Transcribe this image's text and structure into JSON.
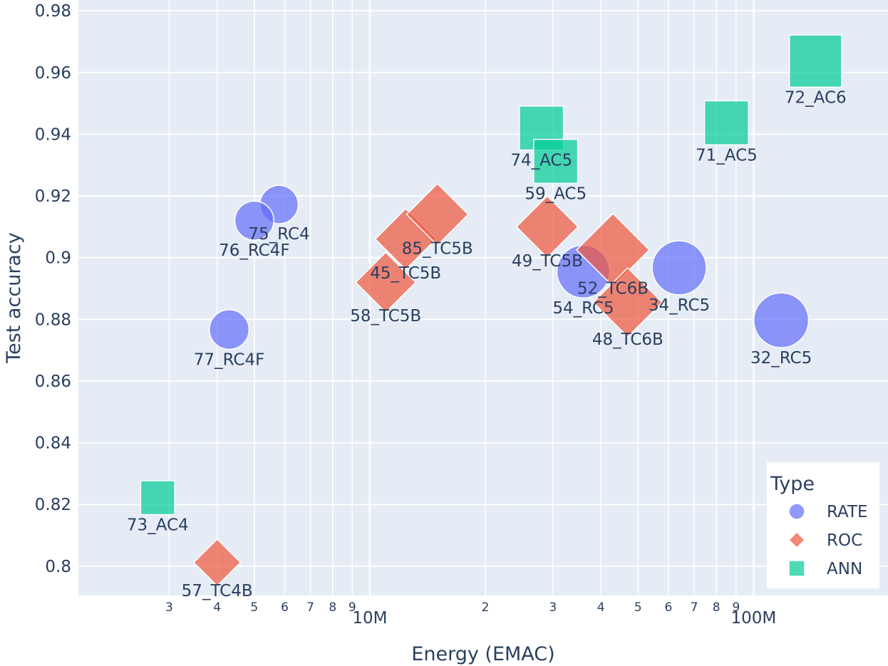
{
  "chart_data": {
    "type": "scatter",
    "title": "",
    "xlabel": "Energy (EMAC)",
    "ylabel": "Test accuracy",
    "xscale": "log",
    "xlim": [
      1740000.0,
      224000000.0
    ],
    "ylim": [
      0.7905,
      0.9835
    ],
    "yticks": [
      {
        "value": 0.8,
        "label": "0.8"
      },
      {
        "value": 0.82,
        "label": "0.82"
      },
      {
        "value": 0.84,
        "label": "0.84"
      },
      {
        "value": 0.86,
        "label": "0.86"
      },
      {
        "value": 0.88,
        "label": "0.88"
      },
      {
        "value": 0.9,
        "label": "0.9"
      },
      {
        "value": 0.92,
        "label": "0.92"
      },
      {
        "value": 0.94,
        "label": "0.94"
      },
      {
        "value": 0.96,
        "label": "0.96"
      },
      {
        "value": 0.98,
        "label": "0.98"
      }
    ],
    "xticks_major": [
      {
        "value": 10000000,
        "label": "10M"
      },
      {
        "value": 100000000,
        "label": "100M"
      }
    ],
    "xticks_minor": [
      {
        "value": 3000000,
        "label": "3"
      },
      {
        "value": 4000000,
        "label": "4"
      },
      {
        "value": 5000000,
        "label": "5"
      },
      {
        "value": 6000000,
        "label": "6"
      },
      {
        "value": 7000000,
        "label": "7"
      },
      {
        "value": 8000000,
        "label": "8"
      },
      {
        "value": 9000000,
        "label": "9"
      },
      {
        "value": 20000000,
        "label": "2"
      },
      {
        "value": 30000000,
        "label": "3"
      },
      {
        "value": 40000000,
        "label": "4"
      },
      {
        "value": 50000000,
        "label": "5"
      },
      {
        "value": 60000000,
        "label": "6"
      },
      {
        "value": 70000000,
        "label": "7"
      },
      {
        "value": 80000000,
        "label": "8"
      },
      {
        "value": 90000000,
        "label": "9"
      }
    ],
    "grid": true,
    "legend": {
      "title": "Type",
      "position": "bottom-right"
    },
    "series": [
      {
        "name": "RATE",
        "symbol": "circle",
        "color": "#636efa",
        "points": [
          {
            "label": "75_RC4",
            "x": 5800000,
            "y": 0.9172,
            "size": 0.28
          },
          {
            "label": "76_RC4F",
            "x": 5000000,
            "y": 0.912,
            "size": 0.29
          },
          {
            "label": "77_RC4F",
            "x": 4300000,
            "y": 0.8767,
            "size": 0.3
          },
          {
            "label": "54_RC5",
            "x": 36000000,
            "y": 0.8955,
            "size": 0.5
          },
          {
            "label": "34_RC5",
            "x": 64000000,
            "y": 0.8967,
            "size": 0.52
          },
          {
            "label": "32_RC5",
            "x": 118000000,
            "y": 0.8797,
            "size": 0.53
          }
        ]
      },
      {
        "name": "ROC",
        "symbol": "diamond",
        "color": "#ef553b",
        "points": [
          {
            "label": "57_TC4B",
            "x": 4000000,
            "y": 0.8012,
            "size": 0.4
          },
          {
            "label": "58_TC5B",
            "x": 11000000,
            "y": 0.892,
            "size": 0.58
          },
          {
            "label": "45_TC5B",
            "x": 12400000,
            "y": 0.906,
            "size": 0.59
          },
          {
            "label": "85_TC5B",
            "x": 15000000,
            "y": 0.914,
            "size": 0.6
          },
          {
            "label": "49_TC5B",
            "x": 29000000,
            "y": 0.91,
            "size": 0.6
          },
          {
            "label": "52_TC6B",
            "x": 43000000,
            "y": 0.9025,
            "size": 0.75
          },
          {
            "label": "48_TC6B",
            "x": 47000000,
            "y": 0.8855,
            "size": 0.7
          }
        ]
      },
      {
        "name": "ANN",
        "symbol": "square",
        "color": "#00cc96",
        "points": [
          {
            "label": "73_AC4",
            "x": 2800000,
            "y": 0.8222,
            "size": 0.36
          },
          {
            "label": "74_AC5",
            "x": 28000000,
            "y": 0.942,
            "size": 0.52
          },
          {
            "label": "59_AC5",
            "x": 30500000,
            "y": 0.9312,
            "size": 0.52
          },
          {
            "label": "71_AC5",
            "x": 85000000,
            "y": 0.9437,
            "size": 0.52
          },
          {
            "label": "72_AC6",
            "x": 145000000,
            "y": 0.9637,
            "size": 0.65
          }
        ]
      }
    ]
  }
}
